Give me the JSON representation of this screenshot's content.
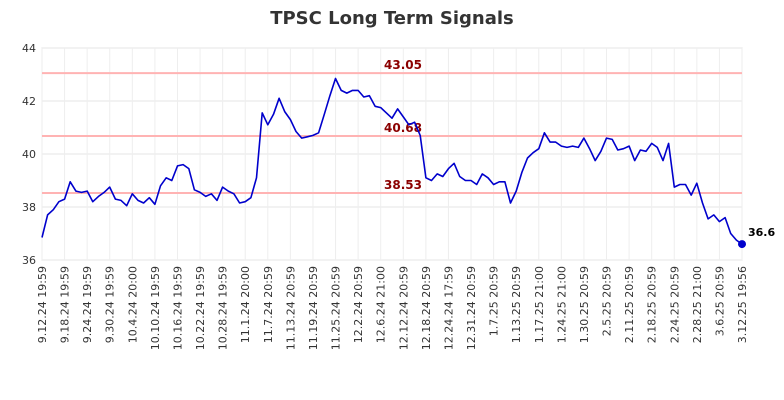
{
  "chart_data": {
    "type": "line",
    "title": "TPSC Long Term Signals",
    "xlabel": "",
    "ylabel": "",
    "ylim": [
      36,
      44
    ],
    "y_ticks": [
      36,
      38,
      40,
      42,
      44
    ],
    "grid": true,
    "line_color": "#0000cc",
    "level_color": "#ffb3b3",
    "level_label_color": "#8b0000",
    "x_tick_labels": [
      "9.12.24 19:59",
      "9.18.24 19:59",
      "9.24.24 19:59",
      "9.30.24 19:59",
      "10.4.24 20:00",
      "10.10.24 19:59",
      "10.16.24 19:59",
      "10.22.24 19:59",
      "10.28.24 19:59",
      "11.1.24 20:00",
      "11.7.24 20:59",
      "11.13.24 20:59",
      "11.19.24 20:59",
      "11.25.24 20:59",
      "12.2.24 20:59",
      "12.6.24 21:00",
      "12.12.24 20:59",
      "12.18.24 20:59",
      "12.24.24 17:59",
      "12.31.24 20:59",
      "1.7.25 20:59",
      "1.13.25 20:59",
      "1.17.25 21:00",
      "1.24.25 21:00",
      "1.30.25 20:59",
      "2.5.25 20:59",
      "2.11.25 20:59",
      "2.18.25 20:59",
      "2.24.25 20:59",
      "2.28.25 21:00",
      "3.6.25 20:59",
      "3.12.25 19:56"
    ],
    "levels": [
      {
        "value": 43.05,
        "label": "43.05"
      },
      {
        "value": 40.68,
        "label": "40.68"
      },
      {
        "value": 38.53,
        "label": "38.53"
      }
    ],
    "last_value_label": "36.6",
    "values": [
      36.85,
      37.7,
      37.9,
      38.2,
      38.3,
      38.95,
      38.6,
      38.55,
      38.6,
      38.2,
      38.4,
      38.55,
      38.75,
      38.3,
      38.25,
      38.05,
      38.5,
      38.25,
      38.15,
      38.35,
      38.1,
      38.8,
      39.1,
      39.0,
      39.55,
      39.6,
      39.45,
      38.65,
      38.55,
      38.4,
      38.5,
      38.25,
      38.75,
      38.6,
      38.5,
      38.15,
      38.2,
      38.35,
      39.1,
      41.55,
      41.1,
      41.5,
      42.1,
      41.6,
      41.3,
      40.85,
      40.6,
      40.65,
      40.7,
      40.8,
      41.5,
      42.2,
      42.85,
      42.4,
      42.3,
      42.4,
      42.4,
      42.15,
      42.2,
      41.8,
      41.75,
      41.55,
      41.35,
      41.7,
      41.4,
      41.1,
      41.2,
      40.7,
      39.1,
      39.0,
      39.25,
      39.15,
      39.45,
      39.65,
      39.15,
      39.0,
      39.0,
      38.85,
      39.25,
      39.1,
      38.85,
      38.95,
      38.95,
      38.15,
      38.6,
      39.3,
      39.85,
      40.05,
      40.2,
      40.8,
      40.45,
      40.45,
      40.3,
      40.25,
      40.3,
      40.25,
      40.6,
      40.2,
      39.75,
      40.1,
      40.6,
      40.55,
      40.15,
      40.2,
      40.3,
      39.75,
      40.15,
      40.1,
      40.4,
      40.25,
      39.75,
      40.4,
      38.75,
      38.85,
      38.85,
      38.45,
      38.9,
      38.15,
      37.55,
      37.7,
      37.45,
      37.6,
      37.0,
      36.75,
      36.6
    ]
  }
}
